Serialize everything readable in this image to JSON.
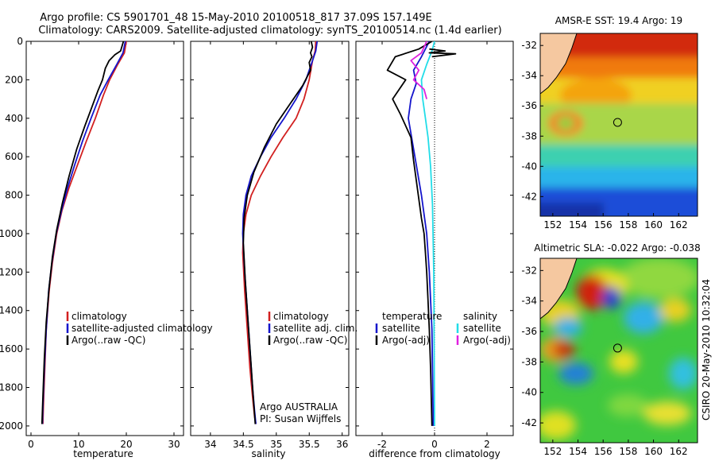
{
  "header": {
    "title_line1": "Argo profile: CS 5901701_48 15-May-2010 20100518_817 37.09S 157.149E",
    "title_line2": "Climatology: CARS2009. Satellite-adjusted climatology: synTS_20100514.nc (1.4d earlier)"
  },
  "side_credit": "CSIRO 20-May-2010 10:32:04",
  "colors": {
    "climatology": "#d22020",
    "satellite": "#1515cc",
    "argo": "#000000",
    "satellite_diff_s": "#22dde8",
    "argo_diff_s": "#e020e0",
    "land": "#f5c8a0",
    "coast": "#000000"
  },
  "chart_data": [
    {
      "type": "line",
      "id": "temperature",
      "xlabel": "temperature",
      "xlim": [
        -1,
        32
      ],
      "xticks": [
        0,
        10,
        20,
        30
      ],
      "ylim": [
        0,
        2050
      ],
      "yticks": [
        0,
        200,
        400,
        600,
        800,
        1000,
        1200,
        1400,
        1600,
        1800,
        2000
      ],
      "ytick_labels": [
        "0",
        "200",
        "400",
        "600",
        "800",
        "1000",
        "1200",
        "1400",
        "1600",
        "1800",
        "2000"
      ],
      "series": [
        {
          "name": "climatology",
          "color_key": "climatology",
          "x": [
            20.0,
            19.6,
            18.2,
            16.5,
            15.2,
            13.5,
            11.6,
            9.8,
            8.0,
            6.5,
            5.4,
            4.5,
            3.8,
            3.2,
            2.9,
            2.6,
            2.5
          ],
          "y": [
            0,
            60,
            120,
            200,
            280,
            400,
            520,
            640,
            760,
            880,
            1000,
            1150,
            1300,
            1500,
            1700,
            1900,
            1990
          ]
        },
        {
          "name": "satellite-adjusted climatology",
          "color_key": "satellite",
          "x": [
            19.8,
            19.3,
            18.0,
            16.2,
            14.5,
            12.6,
            10.8,
            9.2,
            7.7,
            6.4,
            5.3,
            4.4,
            3.7,
            3.2,
            2.8,
            2.5,
            2.4
          ],
          "y": [
            0,
            60,
            120,
            200,
            280,
            400,
            520,
            640,
            760,
            880,
            1000,
            1150,
            1300,
            1500,
            1700,
            1900,
            1990
          ]
        },
        {
          "name": "Argo(..raw -QC)",
          "color_key": "argo",
          "x": [
            19.4,
            18.8,
            17.6,
            16.4,
            15.6,
            15.0,
            14.0,
            12.8,
            11.3,
            9.6,
            8.0,
            6.6,
            5.4,
            4.5,
            3.8,
            3.2,
            2.8,
            2.5,
            2.3
          ],
          "y": [
            0,
            50,
            70,
            100,
            140,
            200,
            260,
            340,
            440,
            560,
            700,
            840,
            980,
            1120,
            1280,
            1460,
            1650,
            1850,
            1990
          ]
        }
      ],
      "legend": {
        "position": "bottom-right",
        "items": [
          "climatology",
          "satellite-adjusted climatology",
          "Argo(..raw -QC)"
        ]
      }
    },
    {
      "type": "line",
      "id": "salinity",
      "xlabel": "salinity",
      "xlim": [
        33.7,
        36.1
      ],
      "xticks": [
        34,
        34.5,
        35,
        35.5,
        36
      ],
      "xtick_labels": [
        "34",
        "34.5",
        "35",
        "35.5",
        "36"
      ],
      "ylim": [
        0,
        2050
      ],
      "series": [
        {
          "name": "climatology",
          "color_key": "climatology",
          "x": [
            35.6,
            35.59,
            35.55,
            35.5,
            35.42,
            35.3,
            35.1,
            34.92,
            34.76,
            34.62,
            34.54,
            34.5,
            34.49,
            34.52,
            34.56,
            34.6,
            34.64,
            34.67,
            34.69
          ],
          "y": [
            0,
            50,
            100,
            200,
            300,
            400,
            500,
            600,
            700,
            800,
            900,
            1000,
            1100,
            1300,
            1500,
            1700,
            1850,
            1950,
            1990
          ]
        },
        {
          "name": "satellite adj. clim.",
          "color_key": "satellite",
          "x": [
            35.62,
            35.6,
            35.55,
            35.45,
            35.3,
            35.12,
            34.92,
            34.76,
            34.62,
            34.54,
            34.5,
            34.49,
            34.52,
            34.56,
            34.6,
            34.64,
            34.67,
            34.69
          ],
          "y": [
            0,
            50,
            100,
            200,
            300,
            400,
            500,
            600,
            700,
            800,
            900,
            1000,
            1200,
            1400,
            1600,
            1800,
            1920,
            1990
          ]
        },
        {
          "name": "Argo(..raw -QC)",
          "color_key": "argo",
          "x": [
            35.53,
            35.55,
            35.52,
            35.54,
            35.5,
            35.52,
            35.4,
            35.22,
            35.0,
            34.82,
            34.66,
            34.56,
            34.51,
            34.5,
            34.53,
            34.57,
            34.61,
            34.65,
            34.68
          ],
          "y": [
            0,
            30,
            60,
            80,
            110,
            150,
            230,
            320,
            430,
            550,
            680,
            800,
            920,
            1050,
            1250,
            1450,
            1650,
            1850,
            1990
          ]
        }
      ],
      "legend": {
        "position": "bottom-right",
        "items": [
          "climatology",
          "satellite adj. clim.",
          "Argo(..raw -QC)"
        ]
      },
      "annotation": [
        "Argo AUSTRALIA",
        "PI: Susan Wijffels"
      ]
    },
    {
      "type": "line",
      "id": "difference",
      "xlabel": "difference from climatology",
      "xlim": [
        -3.0,
        3.0
      ],
      "xticks": [
        -2,
        0,
        2
      ],
      "ylim": [
        0,
        2050
      ],
      "zero_line": true,
      "series": [
        {
          "name": "temperature satellite",
          "color_key": "satellite",
          "x": [
            -0.2,
            -0.5,
            -0.8,
            -0.7,
            -0.9,
            -1.0,
            -0.9,
            -0.8,
            -0.7,
            -0.6,
            -0.5,
            -0.4,
            -0.3,
            -0.2,
            -0.1,
            -0.05
          ],
          "y": [
            0,
            80,
            150,
            220,
            300,
            400,
            480,
            560,
            640,
            720,
            800,
            900,
            1000,
            1200,
            1500,
            2000
          ]
        },
        {
          "name": "temperature Argo(-adj)",
          "color_key": "argo",
          "x": [
            -0.1,
            -0.6,
            -1.5,
            -1.8,
            -1.1,
            -1.6,
            -1.3,
            -0.9,
            -0.8,
            -0.7,
            -0.6,
            -0.5,
            -0.4,
            -0.35,
            -0.3,
            -0.25,
            -0.2,
            -0.15,
            -0.1
          ],
          "y": [
            0,
            40,
            80,
            150,
            200,
            300,
            380,
            500,
            620,
            720,
            820,
            920,
            1000,
            1100,
            1200,
            1350,
            1500,
            1700,
            2000
          ]
        },
        {
          "name": "salinity satellite",
          "color_key": "satellite_diff_s",
          "x": [
            0.0,
            -0.1,
            -0.3,
            -0.5,
            -0.45,
            -0.35,
            -0.25,
            -0.15,
            -0.08,
            -0.03,
            0.0
          ],
          "y": [
            0,
            50,
            120,
            200,
            300,
            400,
            500,
            650,
            850,
            1200,
            2000
          ]
        },
        {
          "name": "salinity Argo(-adj)",
          "color_key": "argo_diff_s",
          "x": [
            -0.3,
            -0.5,
            -0.9,
            -0.6,
            -0.8,
            -0.4,
            -0.3
          ],
          "y": [
            0,
            60,
            100,
            150,
            200,
            250,
            300
          ]
        },
        {
          "name": "near-surface spike",
          "color_key": "argo",
          "x": [
            -0.2,
            0.4,
            -0.2,
            0.8,
            -0.1
          ],
          "y": [
            40,
            50,
            60,
            65,
            80
          ]
        }
      ],
      "legend": {
        "position": "bottom",
        "temperature_heading": "temperature",
        "salinity_heading": "salinity",
        "items": [
          "satellite",
          "Argo(-adj)",
          "satellite",
          "Argo(-adj)"
        ]
      }
    },
    {
      "type": "heatmap",
      "id": "sst_map",
      "title": "AMSR-E SST: 19.4 Argo: 19",
      "xlim": [
        151,
        163.5
      ],
      "ylim": [
        -43.3,
        -31.2
      ],
      "xticks": [
        152,
        154,
        156,
        158,
        160,
        162
      ],
      "yticks": [
        -32,
        -34,
        -36,
        -38,
        -40,
        -42
      ],
      "marker": {
        "lon": 157.149,
        "lat": -37.09
      }
    },
    {
      "type": "heatmap",
      "id": "sla_map",
      "title": "Altimetric SLA: -0.022 Argo: -0.038",
      "xlim": [
        151,
        163.5
      ],
      "ylim": [
        -43.3,
        -31.2
      ],
      "xticks": [
        152,
        154,
        156,
        158,
        160,
        162
      ],
      "yticks": [
        -32,
        -34,
        -36,
        -38,
        -40,
        -42
      ],
      "marker": {
        "lon": 157.149,
        "lat": -37.09
      }
    }
  ]
}
